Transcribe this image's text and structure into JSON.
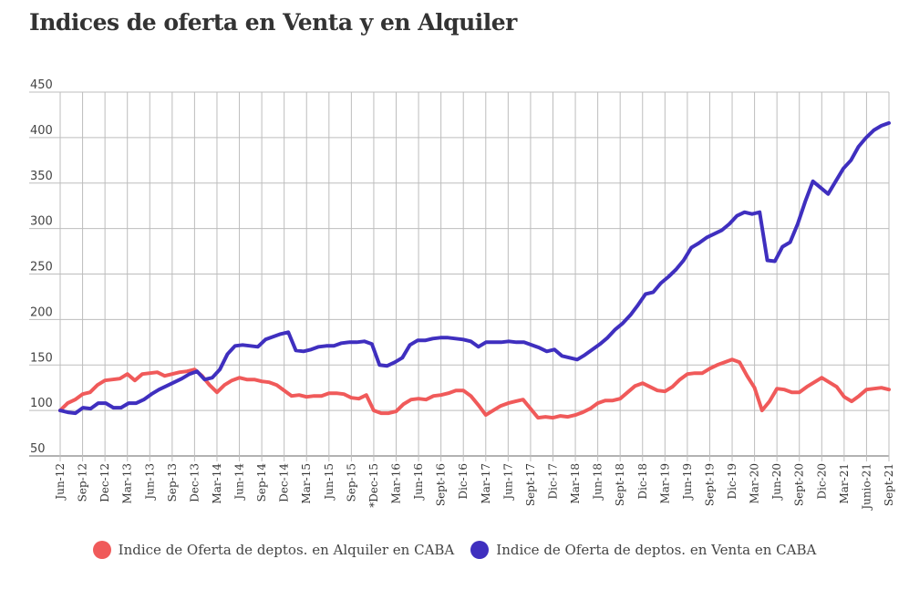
{
  "chart_data": {
    "type": "line",
    "title": "Indices de oferta en Venta y en Alquiler",
    "ylim": [
      50,
      450
    ],
    "yticks": [
      "450",
      "400",
      "350",
      "300",
      "250",
      "200",
      "150",
      "100",
      "50"
    ],
    "grid": true,
    "legend_position": "bottom",
    "xtick_labels": [
      "Jun-12",
      "Sep-12",
      "Dec-12",
      "Mar-13",
      "Jun-13",
      "Sep-13",
      "Dec-13",
      "Mar-14",
      "Jun-14",
      "Sep-14",
      "Dec-14",
      "Mar-15",
      "Jun-15",
      "Sep-15",
      "*Dec-15",
      "Mar-16",
      "Jun-16",
      "Sept-16",
      "Dic-16",
      "Mar-17",
      "Jun-17",
      "Sept-17",
      "Dic-17",
      "Mar-18",
      "Jun-18",
      "Sept-18",
      "Dic-18",
      "Mar-19",
      "Jun-19",
      "Sept-19",
      "Dic-19",
      "Mar-20",
      "Jun-20",
      "Sept-20",
      "Dic-20",
      "Mar-21",
      "Junio-21",
      "Sept-21"
    ],
    "series": [
      {
        "name": "Indice de Oferta de deptos. en Alquiler en CABA",
        "color": "#f05a5a",
        "values": [
          100,
          108,
          112,
          118,
          120,
          128,
          133,
          134,
          135,
          140,
          133,
          140,
          141,
          142,
          138,
          140,
          142,
          143,
          145,
          138,
          128,
          120,
          128,
          133,
          136,
          134,
          134,
          132,
          131,
          128,
          122,
          116,
          117,
          115,
          116,
          116,
          119,
          119,
          118,
          114,
          113,
          117,
          100,
          97,
          97,
          99,
          107,
          112,
          113,
          112,
          116,
          117,
          119,
          122,
          122,
          116,
          106,
          95,
          100,
          105,
          108,
          110,
          112,
          102,
          92,
          93,
          92,
          94,
          93,
          95,
          98,
          102,
          108,
          111,
          111,
          113,
          120,
          127,
          130,
          126,
          122,
          121,
          126,
          134,
          140,
          141,
          141,
          146,
          150,
          153,
          156,
          153,
          138,
          125,
          100,
          110,
          124,
          123,
          120,
          120,
          126,
          131,
          136,
          131,
          126,
          115,
          110,
          116,
          123,
          124,
          125,
          123
        ],
        "note": ""
      },
      {
        "name": "Indice de Oferta de deptos. en Venta en CABA",
        "color": "#3f2fbf",
        "values": [
          100,
          98,
          97,
          103,
          102,
          108,
          108,
          103,
          103,
          108,
          108,
          112,
          118,
          123,
          127,
          131,
          135,
          140,
          143,
          134,
          136,
          145,
          162,
          171,
          172,
          171,
          170,
          178,
          181,
          184,
          186,
          166,
          165,
          167,
          170,
          171,
          171,
          174,
          175,
          175,
          176,
          173,
          150,
          149,
          153,
          158,
          172,
          177,
          177,
          179,
          180,
          180,
          179,
          178,
          176,
          170,
          175,
          175,
          175,
          176,
          175,
          175,
          172,
          169,
          165,
          167,
          160,
          158,
          156,
          161,
          167,
          173,
          180,
          189,
          196,
          205,
          216,
          228,
          230,
          240,
          247,
          255,
          265,
          279,
          284,
          290,
          294,
          298,
          305,
          314,
          318,
          316,
          318,
          265,
          264,
          280,
          285,
          305,
          330,
          352,
          345,
          338,
          352,
          366,
          375,
          390,
          400,
          408,
          413,
          416
        ],
        "note": ""
      }
    ]
  },
  "legend": {
    "alquiler_label": "Indice de Oferta de deptos. en Alquiler en CABA",
    "venta_label": "Indice de Oferta de deptos. en Venta en CABA"
  }
}
